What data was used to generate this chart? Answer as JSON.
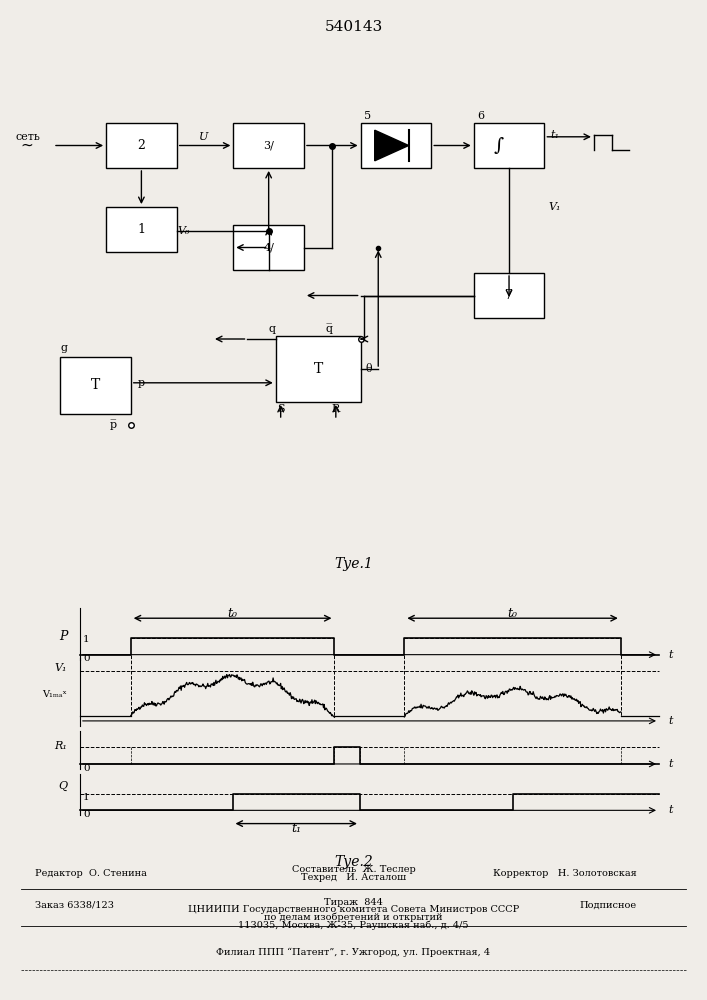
{
  "title": "540143",
  "fig1_caption": "Τуе.1",
  "fig2_caption": "Τуе.2",
  "bg_color": "#f0ede8",
  "net_label": "сеть",
  "footer_redaktor": "Редактор  О. Стенина",
  "footer_line1": "Составитель  Ж. Теслер",
  "footer_line2": "Техред   И. Асталош",
  "footer_line3": "Корректор   Н. Золотовская",
  "footer_zakaz": "Заказ 6338/123",
  "footer_tirazh": "Тираж  844",
  "footer_podpisnoe": "Подписное",
  "footer_tsniip": "ЦНИИПИ Государственного комитета Совета Министров СССР",
  "footer_dela": "по делам изобретений и открытий",
  "footer_addr": "113035, Москва, Ж-35, Раушская наб., д. 4/5",
  "footer_filial": "Филиал ППП “Патент”, г. Ужгород, ул. Проектная, 4"
}
